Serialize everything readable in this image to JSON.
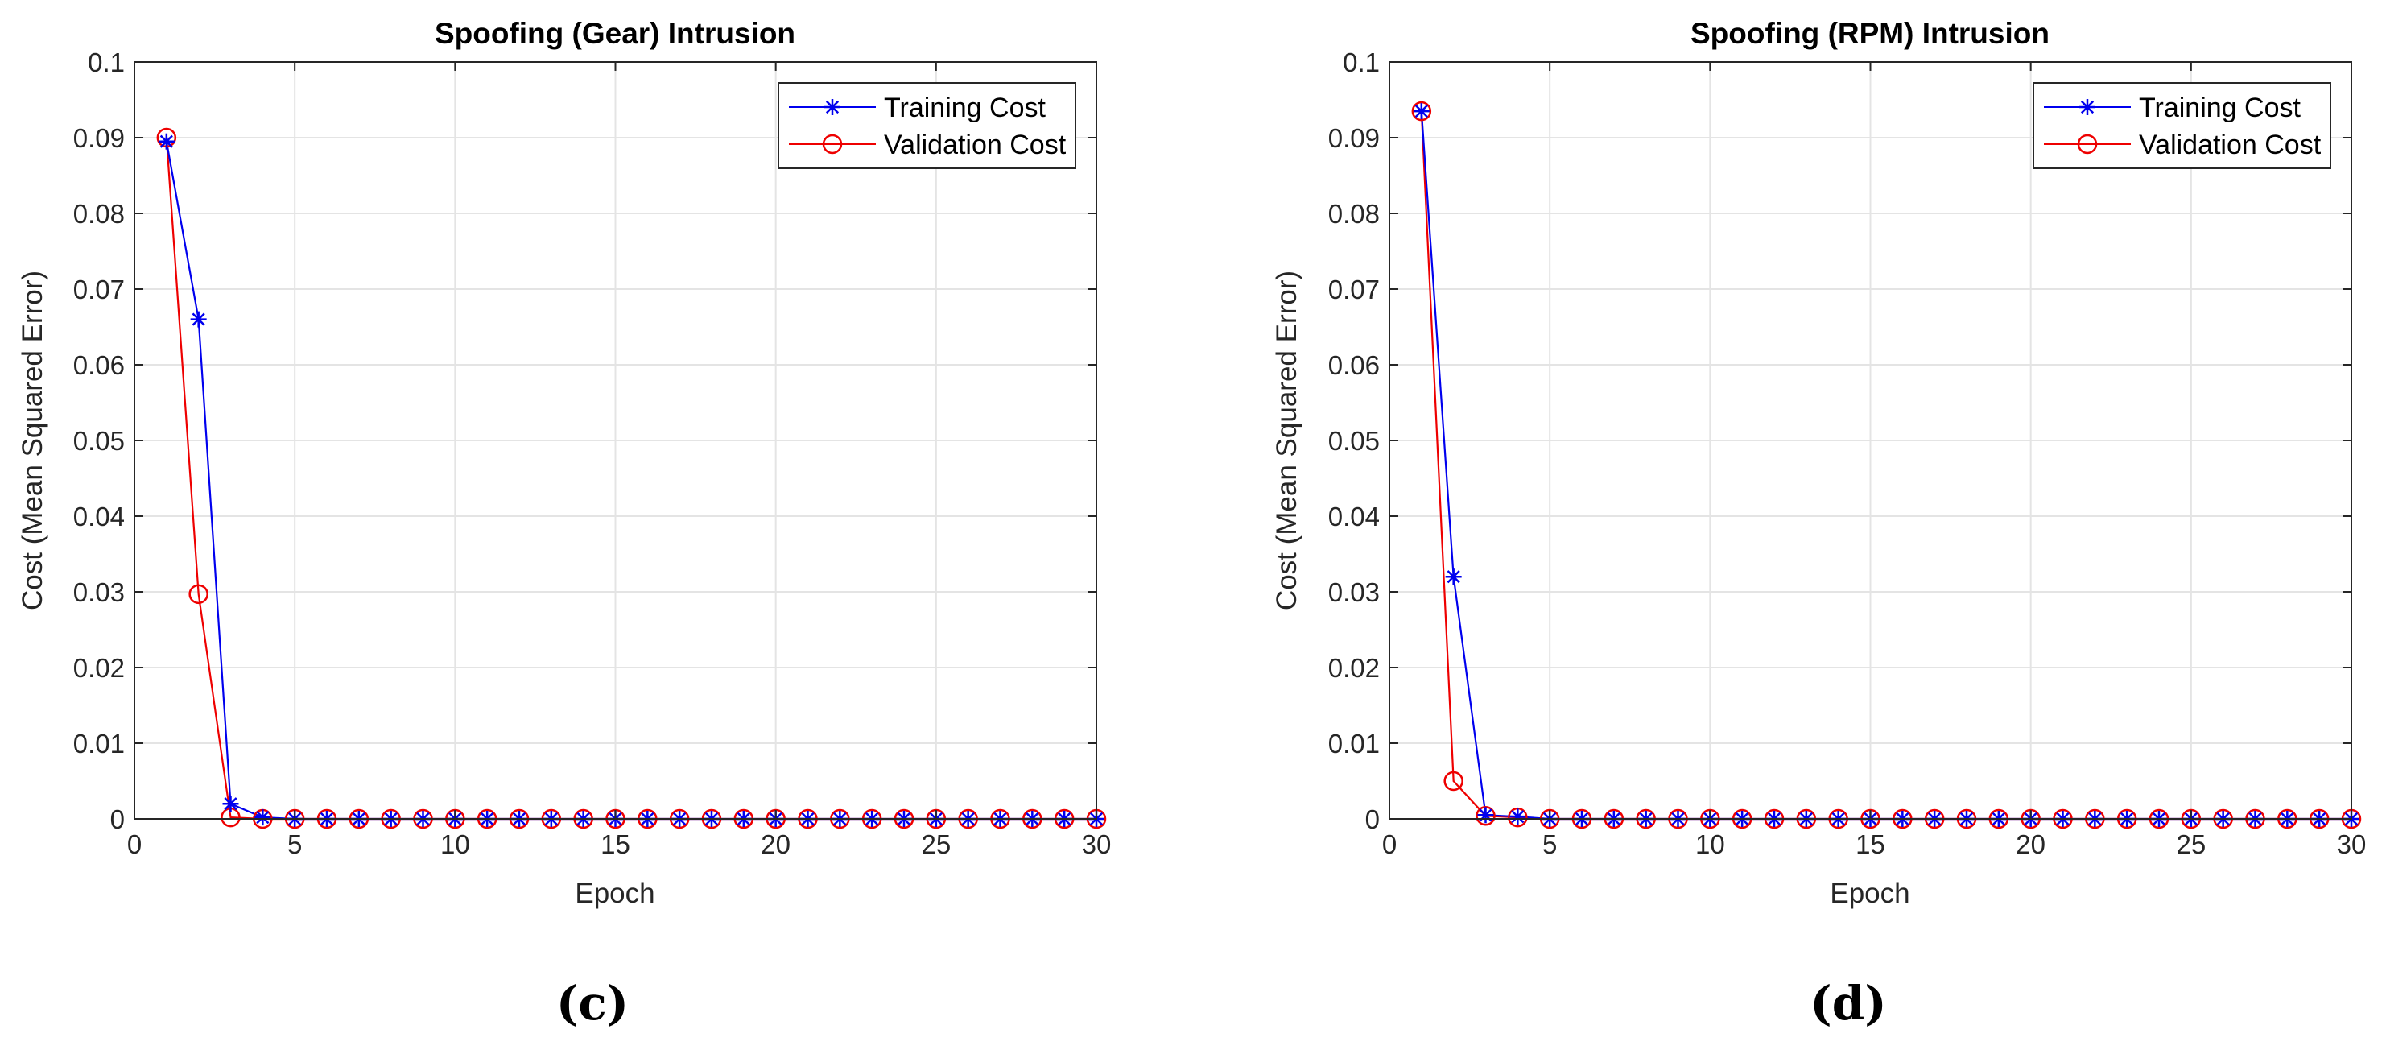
{
  "chart_data": [
    {
      "type": "line",
      "panel_label": "(c)",
      "title": "Spoofing (Gear) Intrusion",
      "xlabel": "Epoch",
      "ylabel": "Cost (Mean Squared Error)",
      "xlim": [
        0,
        30
      ],
      "ylim": [
        0,
        0.1
      ],
      "xticks": [
        "0",
        "5",
        "10",
        "15",
        "20",
        "25",
        "30"
      ],
      "yticks": [
        "0",
        "0.01",
        "0.02",
        "0.03",
        "0.04",
        "0.05",
        "0.06",
        "0.07",
        "0.08",
        "0.09",
        "0.1"
      ],
      "grid": true,
      "legend_position": "top-right",
      "x": [
        1,
        2,
        3,
        4,
        5,
        6,
        7,
        8,
        9,
        10,
        11,
        12,
        13,
        14,
        15,
        16,
        17,
        18,
        19,
        20,
        21,
        22,
        23,
        24,
        25,
        26,
        27,
        28,
        29,
        30
      ],
      "series": [
        {
          "name": "Training Cost",
          "color": "#0000ee",
          "marker": "asterisk",
          "values": [
            0.0895,
            0.066,
            0.002,
            0.0002,
            0,
            0,
            0,
            0,
            0,
            0,
            0,
            0,
            0,
            0,
            0,
            0,
            0,
            0,
            0,
            0,
            0,
            0,
            0,
            0,
            0,
            0,
            0,
            0,
            0,
            0
          ]
        },
        {
          "name": "Validation Cost",
          "color": "#ee0000",
          "marker": "circle",
          "values": [
            0.09,
            0.0297,
            0.0002,
            0,
            0,
            0,
            0,
            0,
            0,
            0,
            0,
            0,
            0,
            0,
            0,
            0,
            0,
            0,
            0,
            0,
            0,
            0,
            0,
            0,
            0,
            0,
            0,
            0,
            0,
            0
          ]
        }
      ]
    },
    {
      "type": "line",
      "panel_label": "(d)",
      "title": "Spoofing (RPM) Intrusion",
      "xlabel": "Epoch",
      "ylabel": "Cost (Mean Squared Error)",
      "xlim": [
        0,
        30
      ],
      "ylim": [
        0,
        0.1
      ],
      "xticks": [
        "0",
        "5",
        "10",
        "15",
        "20",
        "25",
        "30"
      ],
      "yticks": [
        "0",
        "0.01",
        "0.02",
        "0.03",
        "0.04",
        "0.05",
        "0.06",
        "0.07",
        "0.08",
        "0.09",
        "0.1"
      ],
      "grid": true,
      "legend_position": "top-right",
      "x": [
        1,
        2,
        3,
        4,
        5,
        6,
        7,
        8,
        9,
        10,
        11,
        12,
        13,
        14,
        15,
        16,
        17,
        18,
        19,
        20,
        21,
        22,
        23,
        24,
        25,
        26,
        27,
        28,
        29,
        30
      ],
      "series": [
        {
          "name": "Training Cost",
          "color": "#0000ee",
          "marker": "asterisk",
          "values": [
            0.0935,
            0.032,
            0.0005,
            0.0003,
            0,
            0,
            0,
            0,
            0,
            0,
            0,
            0,
            0,
            0,
            0,
            0,
            0,
            0,
            0,
            0,
            0,
            0,
            0,
            0,
            0,
            0,
            0,
            0,
            0,
            0
          ]
        },
        {
          "name": "Validation Cost",
          "color": "#ee0000",
          "marker": "circle",
          "values": [
            0.0935,
            0.005,
            0.0004,
            0.0002,
            0,
            0,
            0,
            0,
            0,
            0,
            0,
            0,
            0,
            0,
            0,
            0,
            0,
            0,
            0,
            0,
            0,
            0,
            0,
            0,
            0,
            0,
            0,
            0,
            0,
            0
          ]
        }
      ]
    }
  ]
}
